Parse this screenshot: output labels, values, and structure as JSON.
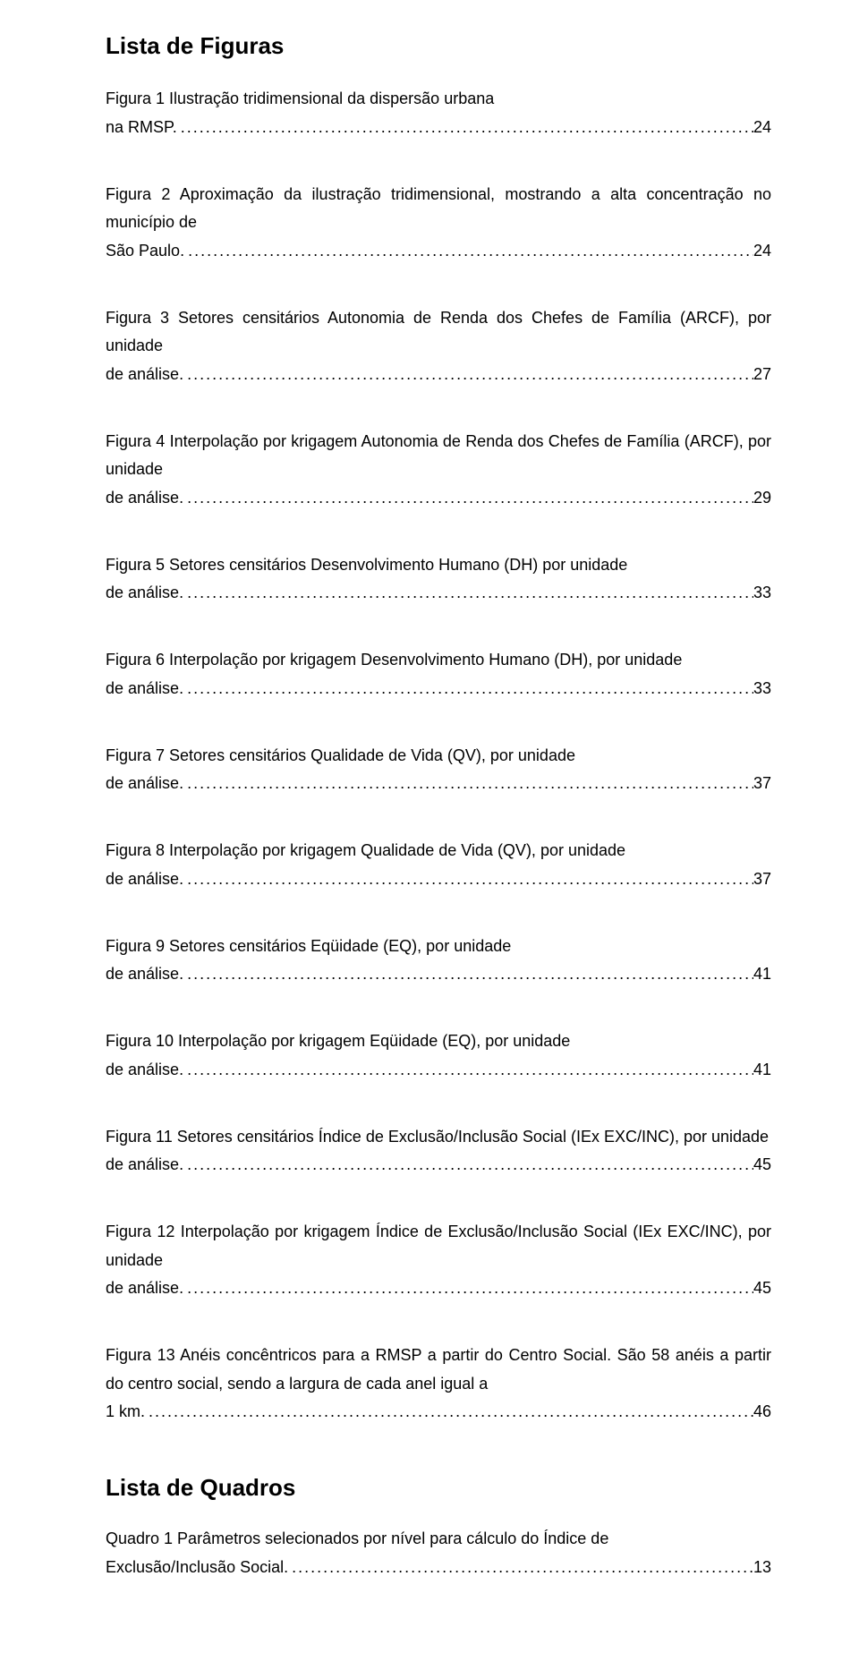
{
  "typography": {
    "heading_fontsize_pt": 20,
    "body_fontsize_pt": 13.5,
    "font_family": "Arial",
    "text_color": "#000000",
    "background_color": "#ffffff",
    "line_height": 1.75
  },
  "headings": {
    "figures": "Lista de Figuras",
    "tables": "Lista de Quadros"
  },
  "figures": [
    {
      "text": "Figura 1 Ilustração tridimensional da dispersão urbana na RMSP.",
      "page": "24"
    },
    {
      "text": "Figura 2 Aproximação da ilustração tridimensional, mostrando a alta concentração no município de São Paulo.",
      "page": "24"
    },
    {
      "text": "Figura 3 Setores censitários Autonomia de Renda dos Chefes de Família (ARCF), por unidade de análise.",
      "page": "27"
    },
    {
      "text": "Figura 4 Interpolação por krigagem Autonomia de Renda dos Chefes de Família (ARCF), por unidade de análise.",
      "page": "29"
    },
    {
      "text": "Figura 5 Setores censitários Desenvolvimento Humano (DH) por unidade de análise.",
      "page": "33"
    },
    {
      "text": "Figura 6 Interpolação por krigagem Desenvolvimento Humano (DH), por unidade de análise.",
      "page": "33"
    },
    {
      "text": "Figura 7 Setores censitários Qualidade de Vida (QV), por unidade de análise.",
      "page": "37"
    },
    {
      "text": "Figura 8 Interpolação por krigagem Qualidade de Vida (QV), por unidade de análise.",
      "page": "37"
    },
    {
      "text": "Figura 9 Setores censitários Eqüidade (EQ), por unidade de análise.",
      "page": "41"
    },
    {
      "text": "Figura 10 Interpolação por krigagem Eqüidade (EQ), por unidade de análise.",
      "page": "41"
    },
    {
      "text": "Figura 11 Setores censitários Índice de Exclusão/Inclusão Social (IEx EXC/INC), por unidade de análise.",
      "page": "45"
    },
    {
      "text": "Figura 12 Interpolação por krigagem Índice de Exclusão/Inclusão Social (IEx EXC/INC), por unidade de análise.",
      "page": "45"
    },
    {
      "text": "Figura 13 Anéis concêntricos para a RMSP a partir do Centro Social. São 58 anéis a partir do centro social, sendo a largura de cada anel igual a 1 km.",
      "page": "46"
    }
  ],
  "tables": [
    {
      "text": "Quadro 1 Parâmetros selecionados por nível para cálculo do Índice de Exclusão/Inclusão Social.",
      "page": "13"
    }
  ],
  "dots": "................................................................................................................................................................................................................"
}
